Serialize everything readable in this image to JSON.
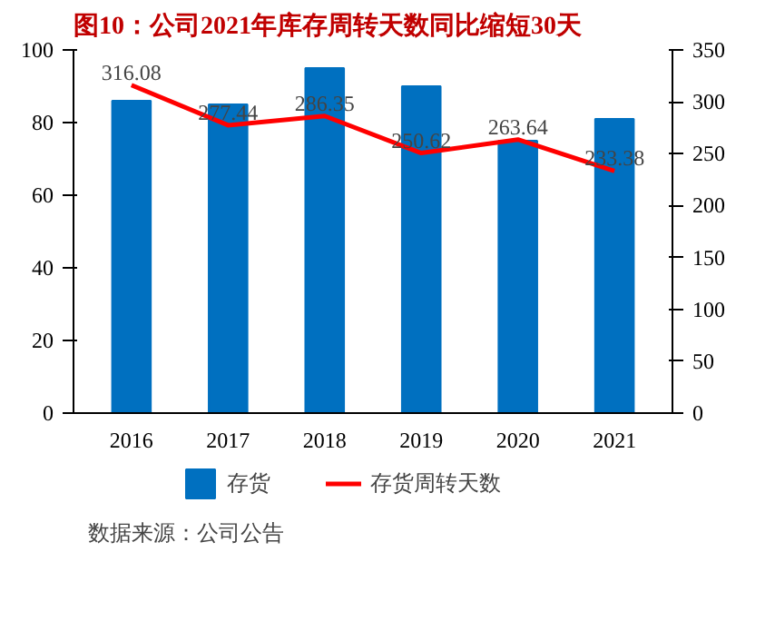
{
  "chart_data": {
    "type": "bar",
    "title": "图10：公司2021年库存周转天数同比缩短30天",
    "categories": [
      "2016",
      "2017",
      "2018",
      "2019",
      "2020",
      "2021"
    ],
    "series": [
      {
        "name": "存货",
        "color": "#0070c0",
        "values": [
          86,
          85,
          95,
          90,
          75,
          81
        ]
      },
      {
        "name": "存货周转天数",
        "type": "line",
        "axis": "y2",
        "color": "#ff0000",
        "values": [
          316.08,
          277.44,
          286.35,
          250.62,
          263.64,
          233.38
        ],
        "value_labels": [
          "316.08",
          "277.44",
          "286.35",
          "250.62",
          "263.64",
          "233.38"
        ]
      }
    ],
    "ylim": [
      0,
      100
    ],
    "yticks": [
      0,
      20,
      40,
      60,
      80,
      100
    ],
    "y2lim": [
      0,
      350
    ],
    "y2ticks": [
      0,
      50,
      100,
      150,
      200,
      250,
      300,
      350
    ],
    "grid": false,
    "legend": "bottom",
    "annotations": [
      "数据来源：公司公告"
    ]
  }
}
